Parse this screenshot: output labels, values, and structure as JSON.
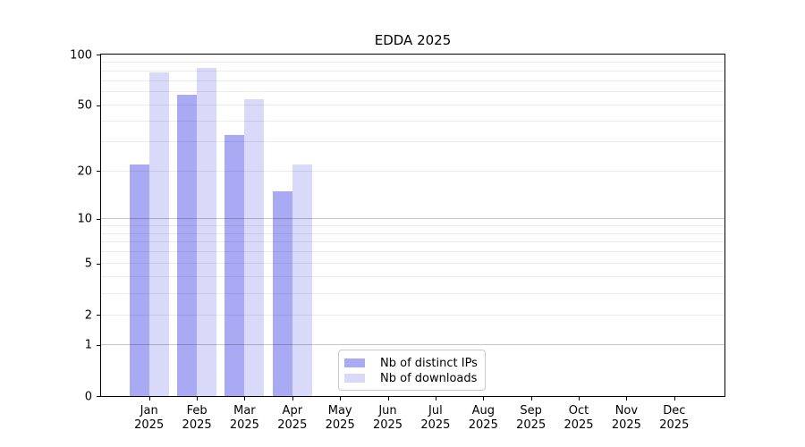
{
  "title": "EDDA 2025",
  "chart_data": {
    "type": "bar",
    "title": "EDDA 2025",
    "categories": [
      "Jan 2025",
      "Feb 2025",
      "Mar 2025",
      "Apr 2025",
      "May 2025",
      "Jun 2025",
      "Jul 2025",
      "Aug 2025",
      "Sep 2025",
      "Oct 2025",
      "Nov 2025",
      "Dec 2025"
    ],
    "series": [
      {
        "name": "Nb of distinct IPs",
        "color": "#a9a9f4",
        "values": [
          22,
          58,
          33,
          15,
          0,
          0,
          0,
          0,
          0,
          0,
          0,
          0
        ]
      },
      {
        "name": "Nb of downloads",
        "color": "#d9d9fa",
        "values": [
          78,
          83,
          54,
          22,
          0,
          0,
          0,
          0,
          0,
          0,
          0,
          0
        ]
      }
    ],
    "yscale": "log1p",
    "ylim": [
      0,
      100
    ],
    "yticks": [
      0,
      1,
      2,
      5,
      10,
      20,
      50,
      100
    ],
    "grid_minor_values": [
      2,
      3,
      4,
      5,
      6,
      7,
      8,
      9,
      20,
      30,
      40,
      50,
      60,
      70,
      80,
      90
    ],
    "grid_major_values": [
      1,
      10
    ],
    "grid": "horizontal",
    "legend_position": "inside-bottom-center"
  },
  "colors": {
    "spine": "#000000",
    "grid_minor": "rgba(0,0,0,0.075)",
    "grid_major": "rgba(0,0,0,0.22)",
    "background": "#ffffff",
    "legend_border": "#c9c9c9"
  }
}
